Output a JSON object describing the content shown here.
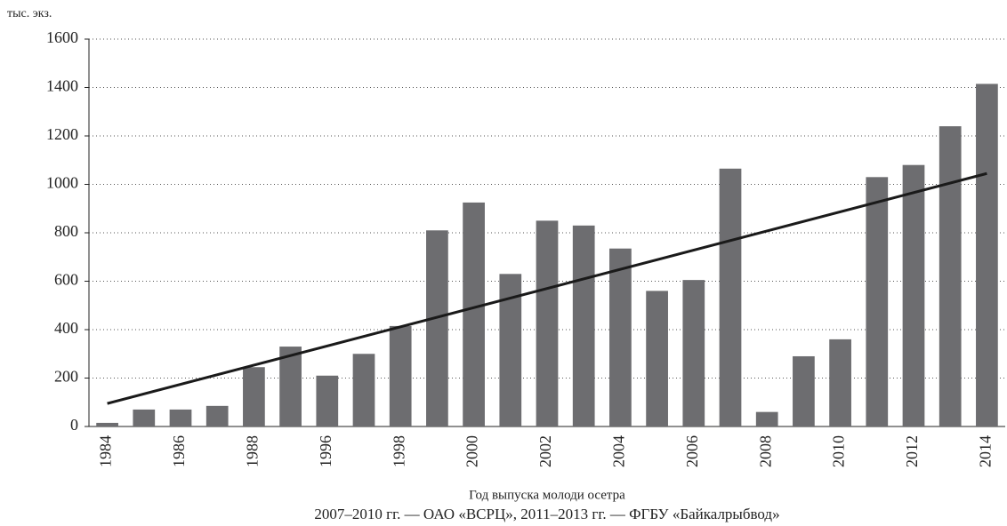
{
  "chart_data": {
    "type": "bar",
    "y_unit": "тыс. экз.",
    "x_label": "Год выпуска молоди осетра",
    "note": "2007–2010 гг. — ОАО «ВСРЦ», 2011–2013 гг. — ФГБУ «Байкалрыбвод»",
    "categories": [
      "1984",
      null,
      "1986",
      null,
      "1988",
      null,
      "1996",
      null,
      "1998",
      null,
      "2000",
      null,
      "2002",
      null,
      "2004",
      null,
      "2006",
      null,
      "2008",
      null,
      "2010",
      null,
      "2012",
      null,
      "2014"
    ],
    "values": [
      15,
      70,
      70,
      85,
      245,
      330,
      210,
      300,
      415,
      810,
      925,
      630,
      850,
      830,
      735,
      560,
      605,
      1065,
      60,
      290,
      360,
      1030,
      1080,
      1240,
      1415
    ],
    "color": "#6d6d70",
    "trend_values": [
      95,
      1045
    ],
    "trend_color": "#1a1a1a",
    "ylim": [
      0,
      1600
    ],
    "yticks": [
      0,
      200,
      400,
      600,
      800,
      1000,
      1200,
      1400,
      1600
    ],
    "grid": true
  }
}
